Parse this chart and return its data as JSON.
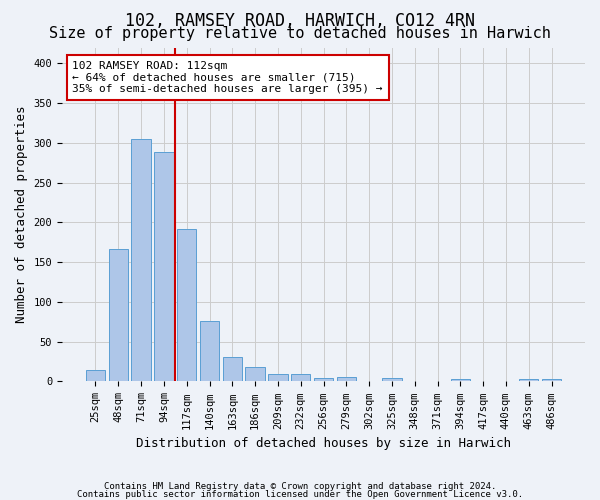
{
  "title": "102, RAMSEY ROAD, HARWICH, CO12 4RN",
  "subtitle": "Size of property relative to detached houses in Harwich",
  "xlabel": "Distribution of detached houses by size in Harwich",
  "ylabel": "Number of detached properties",
  "footer_line1": "Contains HM Land Registry data © Crown copyright and database right 2024.",
  "footer_line2": "Contains public sector information licensed under the Open Government Licence v3.0.",
  "categories": [
    "25sqm",
    "48sqm",
    "71sqm",
    "94sqm",
    "117sqm",
    "140sqm",
    "163sqm",
    "186sqm",
    "209sqm",
    "232sqm",
    "256sqm",
    "279sqm",
    "302sqm",
    "325sqm",
    "348sqm",
    "371sqm",
    "394sqm",
    "417sqm",
    "440sqm",
    "463sqm",
    "486sqm"
  ],
  "values": [
    14,
    166,
    305,
    289,
    192,
    76,
    31,
    18,
    9,
    9,
    4,
    5,
    0,
    4,
    0,
    0,
    3,
    0,
    0,
    3,
    3
  ],
  "bar_color": "#aec6e8",
  "bar_edge_color": "#5a9fd4",
  "vline_pos": 3.5,
  "vline_color": "#cc0000",
  "annotation_text": "102 RAMSEY ROAD: 112sqm\n← 64% of detached houses are smaller (715)\n35% of semi-detached houses are larger (395) →",
  "annotation_box_color": "#ffffff",
  "annotation_box_edge_color": "#cc0000",
  "ylim_max": 420,
  "yticks": [
    0,
    50,
    100,
    150,
    200,
    250,
    300,
    350,
    400
  ],
  "grid_color": "#cccccc",
  "background_color": "#eef2f8",
  "title_fontsize": 12,
  "subtitle_fontsize": 11,
  "ylabel_fontsize": 9,
  "xlabel_fontsize": 9,
  "tick_fontsize": 7.5,
  "footer_fontsize": 6.5,
  "annot_fontsize": 8
}
